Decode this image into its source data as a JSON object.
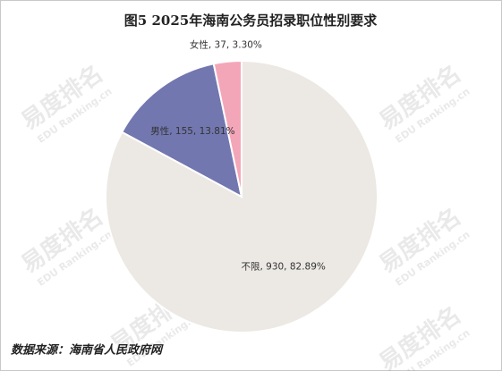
{
  "chart_data": {
    "type": "pie",
    "title": "图5 2025年海南公务员招录职位性别要求",
    "categories": [
      "不限",
      "男性",
      "女性"
    ],
    "values": [
      930,
      155,
      37
    ],
    "value_labels": [
      "不限, 930, 82.89%",
      "男性, 155, 13.81%",
      "女性, 37, 3.30%"
    ],
    "colors": [
      "#ece9e4",
      "#7277b0",
      "#f4a6b9"
    ],
    "source": "数据来源：海南省人民政府网",
    "watermark": {
      "brand": "易度排名",
      "site": "EDU Ranking.cn"
    }
  }
}
